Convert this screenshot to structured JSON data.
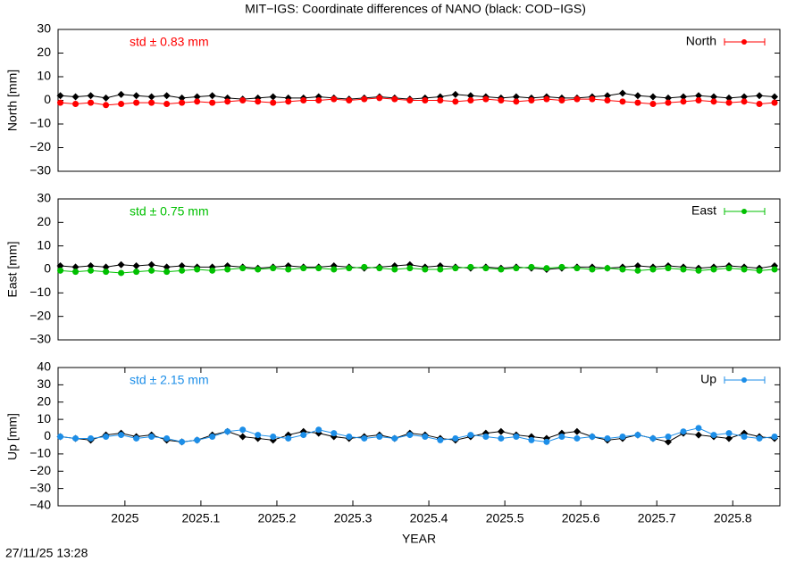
{
  "title": "MIT−IGS: Coordinate differences of NANO (black: COD−IGS)",
  "footer": "27/11/25 13:28",
  "chart_data": [
    {
      "type": "line",
      "ylabel": "North [mm]",
      "annotation": "std ± 0.83 mm",
      "legend": "upper right",
      "xlim": [
        2024.912,
        2025.862
      ],
      "ylim": [
        -30,
        30
      ],
      "yticks": [
        {
          "value": -30,
          "label": "−30"
        },
        {
          "value": -20,
          "label": "−20"
        },
        {
          "value": -10,
          "label": "−10"
        },
        0,
        10,
        20,
        30
      ],
      "x": [
        2024.915,
        2024.935,
        2024.955,
        2024.975,
        2024.995,
        2025.015,
        2025.035,
        2025.055,
        2025.075,
        2025.095,
        2025.115,
        2025.135,
        2025.155,
        2025.175,
        2025.195,
        2025.215,
        2025.235,
        2025.255,
        2025.275,
        2025.295,
        2025.315,
        2025.335,
        2025.355,
        2025.375,
        2025.395,
        2025.415,
        2025.435,
        2025.455,
        2025.475,
        2025.495,
        2025.515,
        2025.535,
        2025.555,
        2025.575,
        2025.595,
        2025.615,
        2025.635,
        2025.655,
        2025.675,
        2025.695,
        2025.715,
        2025.735,
        2025.755,
        2025.775,
        2025.795,
        2025.815,
        2025.835,
        2025.855
      ],
      "series": [
        {
          "color": "#000000",
          "marker": "diamond",
          "values": [
            2,
            1.5,
            2,
            1,
            2.5,
            2,
            1.5,
            2,
            1,
            1.5,
            2,
            1,
            0.5,
            1,
            1.5,
            1,
            1,
            1.5,
            1,
            0.5,
            1,
            1.5,
            1,
            0.5,
            1,
            1.5,
            2.5,
            2,
            1.5,
            1,
            1.5,
            1,
            1.5,
            1,
            1,
            1.5,
            2,
            3,
            2,
            1.5,
            1,
            1.5,
            2,
            1.5,
            1,
            1.5,
            2,
            1.5
          ]
        },
        {
          "name": "North",
          "color": "#ff0000",
          "marker": "circle",
          "values": [
            -1,
            -1.5,
            -1,
            -2,
            -1.5,
            -1,
            -1,
            -1.5,
            -1,
            -0.5,
            -1,
            -0.5,
            0,
            -0.5,
            -1,
            -0.5,
            0,
            0,
            0.5,
            0,
            0.5,
            1,
            0.5,
            0,
            0,
            0,
            -0.5,
            0,
            0.5,
            0,
            -0.5,
            0,
            0.5,
            0,
            0.5,
            0.5,
            0,
            -0.5,
            -1,
            -1.5,
            -1,
            -0.5,
            0,
            -0.5,
            -1,
            -0.5,
            -1.5,
            -1
          ]
        }
      ]
    },
    {
      "type": "line",
      "ylabel": "East [mm]",
      "annotation": "std ± 0.75 mm",
      "legend": "upper right",
      "xlim": [
        2024.912,
        2025.862
      ],
      "ylim": [
        -30,
        30
      ],
      "yticks": [
        {
          "value": -30,
          "label": "−30"
        },
        {
          "value": -20,
          "label": "−20"
        },
        {
          "value": -10,
          "label": "−10"
        },
        0,
        10,
        20,
        30
      ],
      "x": [
        2024.915,
        2024.935,
        2024.955,
        2024.975,
        2024.995,
        2025.015,
        2025.035,
        2025.055,
        2025.075,
        2025.095,
        2025.115,
        2025.135,
        2025.155,
        2025.175,
        2025.195,
        2025.215,
        2025.235,
        2025.255,
        2025.275,
        2025.295,
        2025.315,
        2025.335,
        2025.355,
        2025.375,
        2025.395,
        2025.415,
        2025.435,
        2025.455,
        2025.475,
        2025.495,
        2025.515,
        2025.535,
        2025.555,
        2025.575,
        2025.595,
        2025.615,
        2025.635,
        2025.655,
        2025.675,
        2025.695,
        2025.715,
        2025.735,
        2025.755,
        2025.775,
        2025.795,
        2025.815,
        2025.835,
        2025.855
      ],
      "series": [
        {
          "color": "#000000",
          "marker": "diamond",
          "values": [
            1.5,
            1,
            1.5,
            1,
            2,
            1.5,
            2,
            1,
            1.5,
            1,
            1,
            1.5,
            1,
            0.5,
            1,
            1.5,
            1,
            1,
            1.5,
            1,
            0.5,
            1,
            1.5,
            2,
            1,
            1.5,
            1,
            0.5,
            1,
            0.5,
            1,
            0.5,
            0,
            0.5,
            1,
            1,
            0.5,
            1,
            1.5,
            1,
            1.5,
            1,
            0.5,
            1,
            1.5,
            1,
            0.5,
            1.5
          ]
        },
        {
          "name": "East",
          "color": "#00c000",
          "marker": "circle",
          "values": [
            -0.5,
            -1,
            -0.5,
            -1,
            -1.5,
            -1,
            -0.5,
            -1,
            -0.5,
            0,
            -0.5,
            0,
            0.5,
            0,
            0.5,
            0,
            0.5,
            0.5,
            0,
            0.5,
            1,
            0.5,
            0,
            0.5,
            0,
            0,
            0.5,
            1,
            0.5,
            0,
            0.5,
            1,
            0.5,
            1,
            0.5,
            0,
            0.5,
            0,
            -0.5,
            0,
            0.5,
            0,
            -0.5,
            0,
            0.5,
            0,
            -0.5,
            0
          ]
        }
      ]
    },
    {
      "type": "line",
      "ylabel": "Up [mm]",
      "xlabel": "YEAR",
      "annotation": "std ± 2.15 mm",
      "legend": "upper right",
      "xlim": [
        2024.912,
        2025.862
      ],
      "ylim": [
        -40,
        40
      ],
      "xticks": [
        2025,
        2025.1,
        2025.2,
        2025.3,
        2025.4,
        2025.5,
        2025.6,
        2025.7,
        2025.8
      ],
      "yticks": [
        {
          "value": -40,
          "label": "−40"
        },
        {
          "value": -30,
          "label": "−30"
        },
        {
          "value": -20,
          "label": "−20"
        },
        {
          "value": -10,
          "label": "−10"
        },
        0,
        10,
        20,
        30,
        40
      ],
      "x": [
        2024.915,
        2024.935,
        2024.955,
        2024.975,
        2024.995,
        2025.015,
        2025.035,
        2025.055,
        2025.075,
        2025.095,
        2025.115,
        2025.135,
        2025.155,
        2025.175,
        2025.195,
        2025.215,
        2025.235,
        2025.255,
        2025.275,
        2025.295,
        2025.315,
        2025.335,
        2025.355,
        2025.375,
        2025.395,
        2025.415,
        2025.435,
        2025.455,
        2025.475,
        2025.495,
        2025.515,
        2025.535,
        2025.555,
        2025.575,
        2025.595,
        2025.615,
        2025.635,
        2025.655,
        2025.675,
        2025.695,
        2025.715,
        2025.735,
        2025.755,
        2025.775,
        2025.795,
        2025.815,
        2025.835,
        2025.855
      ],
      "series": [
        {
          "color": "#000000",
          "marker": "diamond",
          "values": [
            0,
            -1,
            -2,
            1,
            2,
            0,
            1,
            -2,
            -3,
            -2,
            1,
            3,
            0,
            -1,
            -2,
            1,
            3,
            2,
            0,
            -1,
            0,
            1,
            -1,
            2,
            1,
            -1,
            -2,
            0,
            2,
            3,
            1,
            0,
            -1,
            2,
            3,
            0,
            -2,
            -1,
            1,
            -1,
            -3,
            2,
            1,
            0,
            -1,
            2,
            0,
            -1
          ]
        },
        {
          "name": "Up",
          "color": "#1c8ee8",
          "marker": "circle",
          "values": [
            0,
            -1,
            -1,
            0,
            1,
            -1,
            0,
            -1,
            -3,
            -2,
            0,
            3,
            4,
            1,
            0,
            -1,
            1,
            4,
            2,
            0,
            -1,
            0,
            -1,
            1,
            0,
            -2,
            -1,
            1,
            0,
            -1,
            0,
            -2,
            -3,
            0,
            -1,
            0,
            -1,
            0,
            1,
            -1,
            0,
            3,
            5,
            1,
            2,
            0,
            -1,
            0
          ]
        }
      ]
    }
  ]
}
